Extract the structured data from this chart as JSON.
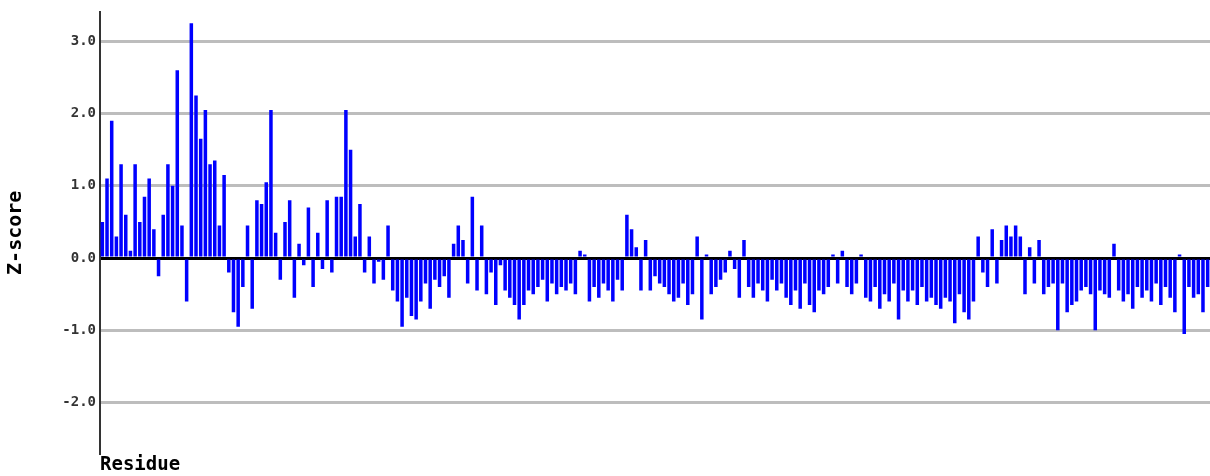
{
  "chart_data": {
    "type": "bar",
    "xlabel": "Residue",
    "ylabel": "Z-score",
    "color": "#0000ff",
    "categories": [
      null,
      null,
      null,
      null,
      null,
      null,
      null,
      null,
      null,
      null,
      null,
      null,
      null,
      null,
      null,
      null,
      null,
      null,
      null,
      null,
      null,
      null,
      null,
      null,
      null,
      null,
      null,
      null,
      null,
      null,
      null,
      null,
      null,
      null,
      null,
      null,
      null,
      null,
      null,
      null,
      null,
      null,
      null,
      null,
      null,
      null,
      null,
      null,
      null,
      null,
      null,
      null,
      null,
      null,
      null,
      null,
      null,
      null,
      null,
      null,
      null,
      null,
      null,
      null,
      null,
      null,
      null,
      null,
      null,
      null,
      null,
      null,
      null,
      null,
      null,
      null,
      null,
      null,
      null,
      null,
      null,
      null,
      null,
      null,
      null,
      null,
      null,
      null,
      null,
      null,
      null,
      null,
      null,
      null,
      null,
      null,
      null,
      null,
      null,
      null,
      null,
      null,
      null,
      null,
      null,
      null,
      null,
      null,
      null,
      null,
      null,
      null,
      null,
      null,
      null,
      null,
      null,
      null,
      null,
      null,
      null,
      null,
      null,
      null,
      null,
      null,
      null,
      null,
      null,
      null,
      null,
      null,
      null,
      null,
      null,
      null,
      null,
      null,
      null,
      null,
      null,
      null,
      null,
      null,
      null,
      null,
      null,
      null,
      null,
      null,
      null,
      null,
      null,
      null,
      null,
      null,
      null,
      null,
      null,
      null,
      null,
      null,
      null,
      null,
      null,
      null,
      null,
      null,
      null,
      null,
      null,
      null,
      null,
      null,
      null,
      null,
      null,
      null,
      null,
      null,
      null,
      null,
      null,
      null,
      null,
      null,
      null,
      null,
      null,
      null,
      null,
      null,
      null,
      null,
      null,
      null,
      null,
      null,
      null,
      null,
      null,
      null,
      null,
      null,
      null,
      null,
      null,
      null,
      null,
      null,
      null,
      null,
      null,
      null,
      null,
      null,
      null,
      null,
      null,
      null,
      null,
      null,
      null,
      null,
      null,
      null,
      null,
      null,
      null,
      null,
      null,
      null,
      null,
      null,
      null,
      null,
      null
    ],
    "values": [
      0.5,
      1.1,
      1.9,
      0.3,
      1.3,
      0.6,
      0.1,
      1.3,
      0.5,
      0.85,
      1.1,
      0.4,
      -0.25,
      0.6,
      1.3,
      1.0,
      2.6,
      0.45,
      -0.6,
      3.25,
      2.25,
      1.65,
      2.05,
      1.3,
      1.35,
      0.45,
      1.15,
      -0.2,
      -0.75,
      -0.95,
      -0.4,
      0.45,
      -0.7,
      0.8,
      0.75,
      1.05,
      2.05,
      0.35,
      -0.3,
      0.5,
      0.8,
      -0.55,
      0.2,
      -0.1,
      0.7,
      -0.4,
      0.35,
      -0.15,
      0.8,
      -0.2,
      0.85,
      0.85,
      2.05,
      1.5,
      0.3,
      0.75,
      -0.2,
      0.3,
      -0.35,
      -0.05,
      -0.3,
      0.45,
      -0.45,
      -0.6,
      -0.95,
      -0.55,
      -0.8,
      -0.85,
      -0.6,
      -0.35,
      -0.7,
      -0.3,
      -0.4,
      -0.25,
      -0.55,
      0.2,
      0.45,
      0.25,
      -0.35,
      0.85,
      -0.45,
      0.45,
      -0.5,
      -0.2,
      -0.65,
      -0.1,
      -0.45,
      -0.55,
      -0.65,
      -0.85,
      -0.65,
      -0.45,
      -0.5,
      -0.4,
      -0.3,
      -0.6,
      -0.35,
      -0.5,
      -0.4,
      -0.45,
      -0.35,
      -0.5,
      0.1,
      0.05,
      -0.6,
      -0.4,
      -0.55,
      -0.35,
      -0.45,
      -0.6,
      -0.3,
      -0.45,
      0.6,
      0.4,
      0.15,
      -0.45,
      0.25,
      -0.45,
      -0.25,
      -0.35,
      -0.4,
      -0.5,
      -0.6,
      -0.55,
      -0.35,
      -0.65,
      -0.5,
      0.3,
      -0.85,
      0.05,
      -0.5,
      -0.4,
      -0.3,
      -0.2,
      0.1,
      -0.15,
      -0.55,
      0.25,
      -0.4,
      -0.55,
      -0.35,
      -0.45,
      -0.6,
      -0.3,
      -0.45,
      -0.35,
      -0.55,
      -0.65,
      -0.45,
      -0.7,
      -0.35,
      -0.65,
      -0.75,
      -0.45,
      -0.5,
      -0.4,
      0.05,
      -0.35,
      0.1,
      -0.4,
      -0.5,
      -0.35,
      0.05,
      -0.55,
      -0.6,
      -0.4,
      -0.7,
      -0.5,
      -0.6,
      -0.35,
      -0.85,
      -0.45,
      -0.6,
      -0.45,
      -0.65,
      -0.4,
      -0.6,
      -0.55,
      -0.65,
      -0.7,
      -0.55,
      -0.6,
      -0.9,
      -0.5,
      -0.75,
      -0.85,
      -0.6,
      0.3,
      -0.2,
      -0.4,
      0.4,
      -0.35,
      0.25,
      0.45,
      0.3,
      0.45,
      0.3,
      -0.5,
      0.15,
      -0.35,
      0.25,
      -0.5,
      -0.4,
      -0.35,
      -1.0,
      -0.35,
      -0.75,
      -0.65,
      -0.6,
      -0.45,
      -0.4,
      -0.5,
      -1.0,
      -0.45,
      -0.5,
      -0.55,
      0.2,
      -0.45,
      -0.6,
      -0.5,
      -0.7,
      -0.4,
      -0.55,
      -0.45,
      -0.6,
      -0.35,
      -0.65,
      -0.4,
      -0.55,
      -0.75,
      0.05,
      -1.05,
      -0.4,
      -0.55,
      -0.5,
      -0.75,
      -0.4
    ],
    "ylim": [
      -2.7,
      3.4
    ],
    "yticks": [
      {
        "value": -2,
        "label": "-2.0"
      },
      {
        "value": -1,
        "label": "-1.0"
      },
      {
        "value": 0,
        "label": "0.0"
      },
      {
        "value": 1,
        "label": "1.0"
      },
      {
        "value": 2,
        "label": "2.0"
      },
      {
        "value": 3,
        "label": "3.0"
      }
    ],
    "grid": "y"
  }
}
